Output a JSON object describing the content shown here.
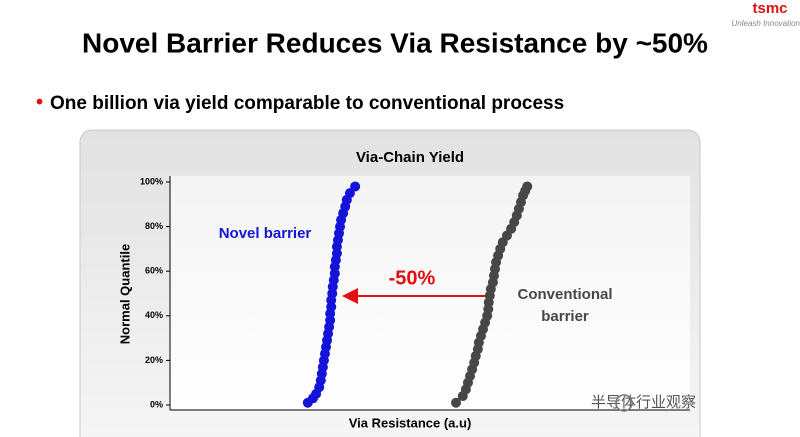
{
  "header": {
    "title": "Novel Barrier Reduces Via Resistance by ~50%",
    "logo": "tsmc",
    "tagline": "Unleash Innovation"
  },
  "bullet": "One billion via yield comparable to conventional process",
  "chart_data": {
    "type": "scatter",
    "title": "Via-Chain Yield",
    "x_label": "Via Resistance (a.u)",
    "y_label": "Normal Quantile",
    "annotation": "-50%",
    "xlim": [
      0,
      100
    ],
    "ylim": [
      0,
      100
    ],
    "yticks": [
      {
        "value": 0,
        "label": "0%"
      },
      {
        "value": 20,
        "label": "20%"
      },
      {
        "value": 40,
        "label": "40%"
      },
      {
        "value": 60,
        "label": "60%"
      },
      {
        "value": 80,
        "label": "80%"
      },
      {
        "value": 100,
        "label": "100%"
      }
    ],
    "series": [
      {
        "name": "Novel barrier",
        "color": "#1414d8",
        "x": [
          26.5,
          27.5,
          28.1,
          28.7,
          29.0,
          29.2,
          29.4,
          29.6,
          29.8,
          30.0,
          30.2,
          30.4,
          30.6,
          30.8,
          30.8,
          31.0,
          31.0,
          31.2,
          31.3,
          31.5,
          31.7,
          31.7,
          31.9,
          32.1,
          32.1,
          32.3,
          32.5,
          32.7,
          32.9,
          33.3,
          33.7,
          34.0,
          34.6,
          35.6
        ],
        "values": [
          1,
          3,
          5,
          8,
          11,
          14,
          17,
          20,
          23,
          26,
          29,
          32,
          35,
          38,
          41,
          44,
          47,
          50,
          53,
          56,
          59,
          62,
          65,
          68,
          71,
          74,
          77,
          80,
          83,
          86,
          89,
          92,
          95,
          98
        ]
      },
      {
        "name": "Conventional barrier",
        "color": "#474747",
        "x": [
          55.0,
          56.3,
          56.9,
          57.3,
          57.7,
          58.1,
          58.5,
          58.8,
          59.2,
          59.4,
          59.8,
          60.2,
          60.6,
          61.0,
          61.2,
          61.3,
          61.5,
          61.7,
          62.1,
          62.3,
          62.5,
          62.7,
          63.1,
          63.5,
          64.0,
          64.8,
          65.6,
          66.2,
          66.7,
          67.1,
          67.5,
          67.9,
          68.3,
          68.7
        ],
        "values": [
          1,
          4,
          7,
          10,
          13,
          16,
          19,
          22,
          25,
          28,
          31,
          34,
          37,
          40,
          43,
          46,
          49,
          52,
          55,
          58,
          61,
          64,
          67,
          70,
          73,
          76,
          79,
          82,
          85,
          88,
          91,
          94,
          96,
          98
        ]
      }
    ]
  },
  "watermark": "半导体行业观察"
}
